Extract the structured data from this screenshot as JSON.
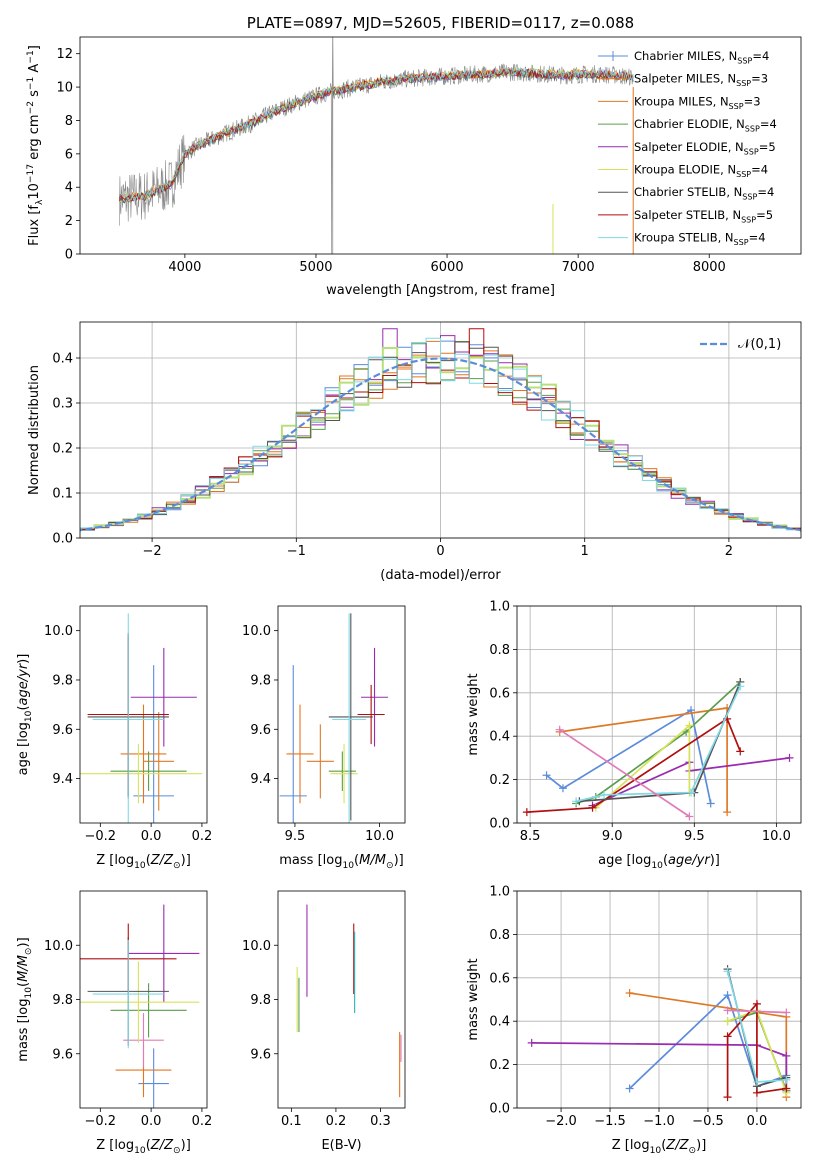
{
  "colors": [
    "#5b8cdc",
    "#e8731e",
    "#dd7a26",
    "#5a9e4c",
    "#9a2bb0",
    "#d6e35a",
    "#555555",
    "#b10f0f",
    "#7fd9e6"
  ],
  "extra_colors": {
    "pink": "#e07bb9",
    "lime": "#b8e07a",
    "teal": "#2bb3b0",
    "gray_data": "#888888",
    "gaussian": "#5b8cdc"
  },
  "chart_data": [
    {
      "id": "spectrum",
      "type": "line",
      "title": "PLATE=0897, MJD=52605, FIBERID=0117, z=0.088",
      "xlabel": "wavelength [Angstrom, rest frame]",
      "ylabel": "Flux [fλ10⁻¹⁷ erg cm⁻² s⁻¹ A⁻¹]",
      "xlim": [
        3200,
        8700
      ],
      "ylim": [
        0,
        13
      ],
      "xticks": [
        4000,
        5000,
        6000,
        7000,
        8000
      ],
      "yticks": [
        0,
        2,
        4,
        6,
        8,
        10,
        12
      ],
      "grid": false,
      "legend_position": "upper-right",
      "series": [
        {
          "name": "Chabrier MILES, N",
          "sub": "SSP",
          "post": "=4"
        },
        {
          "name": "Salpeter MILES, N",
          "sub": "SSP",
          "post": "=3"
        },
        {
          "name": "Kroupa MILES, N",
          "sub": "SSP",
          "post": "=3"
        },
        {
          "name": "Chabrier ELODIE, N",
          "sub": "SSP",
          "post": "=4"
        },
        {
          "name": "Salpeter ELODIE, N",
          "sub": "SSP",
          "post": "=5"
        },
        {
          "name": "Kroupa ELODIE, N",
          "sub": "SSP",
          "post": "=4"
        },
        {
          "name": "Chabrier STELIB, N",
          "sub": "SSP",
          "post": "=4"
        },
        {
          "name": "Salpeter STELIB, N",
          "sub": "SSP",
          "post": "=5"
        },
        {
          "name": "Kroupa STELIB, N",
          "sub": "SSP",
          "post": "=4"
        }
      ],
      "continuum": {
        "x": [
          3500,
          3700,
          3900,
          4000,
          4100,
          4300,
          4500,
          4700,
          4900,
          5100,
          5300,
          5500,
          5700,
          5900,
          6100,
          6300,
          6500,
          6700,
          6900,
          7100,
          7300,
          7400
        ],
        "y": [
          3.3,
          3.5,
          4.2,
          6.0,
          6.5,
          7.2,
          7.8,
          8.6,
          9.2,
          9.7,
          10.0,
          10.3,
          10.5,
          10.6,
          10.7,
          10.8,
          10.9,
          10.8,
          10.7,
          10.8,
          10.7,
          10.6
        ]
      }
    },
    {
      "id": "residuals",
      "type": "step",
      "xlabel": "(data-model)/error",
      "ylabel": "Normed distribution",
      "xlim": [
        -2.5,
        2.5
      ],
      "ylim": [
        0,
        0.48
      ],
      "xticks": [
        -2,
        -1,
        0,
        1,
        2
      ],
      "yticks": [
        0.0,
        0.1,
        0.2,
        0.3,
        0.4
      ],
      "grid": true,
      "legend": "𝒩(0,1)",
      "bin_width": 0.1
    },
    {
      "id": "age-vs-Z",
      "type": "errorbar",
      "xlabel": "Z [log10(Z/Z⊙)]",
      "ylabel": "age  [log10(age/yr)]",
      "xlim": [
        -0.28,
        0.22
      ],
      "ylim": [
        9.22,
        10.1
      ],
      "xticks": [
        -0.2,
        0.0,
        0.2
      ],
      "yticks": [
        9.4,
        9.6,
        9.8,
        10.0
      ],
      "points": [
        {
          "c": 0,
          "x": 0.01,
          "xe": 0.08,
          "y": 9.33,
          "ye": 0.53
        },
        {
          "c": 1,
          "x": -0.03,
          "xe": 0.09,
          "y": 9.5,
          "ye": 0.2
        },
        {
          "c": 2,
          "x": 0.03,
          "xe": 0.06,
          "y": 9.47,
          "ye": 0.2
        },
        {
          "c": 3,
          "x": -0.01,
          "xe": 0.15,
          "y": 9.43,
          "ye": 0.08
        },
        {
          "c": 4,
          "x": 0.05,
          "xe": 0.13,
          "y": 9.73,
          "ye": 0.2
        },
        {
          "c": 5,
          "x": -0.05,
          "xe": 0.25,
          "y": 9.42,
          "ye": 0.12
        },
        {
          "c": 6,
          "x": -0.09,
          "xe": 0.16,
          "y": 9.65,
          "ye": 0.33
        },
        {
          "c": 7,
          "x": -0.09,
          "xe": 0.16,
          "y": 9.66,
          "ye": 0.33
        },
        {
          "c": 8,
          "x": -0.09,
          "xe": 0.14,
          "y": 9.64,
          "ye": 0.43
        }
      ]
    },
    {
      "id": "age-vs-mass",
      "type": "errorbar",
      "xlabel": "mass [log10(M/M⊙)]",
      "ylabel": "",
      "xlim": [
        9.4,
        10.15
      ],
      "ylim": [
        9.22,
        10.1
      ],
      "xticks": [
        9.5,
        10.0
      ],
      "yticks": [
        9.4,
        9.6,
        9.8,
        10.0
      ],
      "points": [
        {
          "c": 0,
          "x": 9.49,
          "xe": 0.08,
          "y": 9.33,
          "ye": 0.53
        },
        {
          "c": 1,
          "x": 9.53,
          "xe": 0.08,
          "y": 9.5,
          "ye": 0.2
        },
        {
          "c": 2,
          "x": 9.65,
          "xe": 0.08,
          "y": 9.47,
          "ye": 0.15
        },
        {
          "c": 3,
          "x": 9.78,
          "xe": 0.08,
          "y": 9.43,
          "ye": 0.08
        },
        {
          "c": 4,
          "x": 9.97,
          "xe": 0.08,
          "y": 9.73,
          "ye": 0.2
        },
        {
          "c": 5,
          "x": 9.79,
          "xe": 0.08,
          "y": 9.42,
          "ye": 0.12
        },
        {
          "c": 6,
          "x": 9.83,
          "xe": 0.13,
          "y": 9.65,
          "ye": 0.42
        },
        {
          "c": 7,
          "x": 9.95,
          "xe": 0.08,
          "y": 9.66,
          "ye": 0.12
        },
        {
          "c": 8,
          "x": 9.82,
          "xe": 0.1,
          "y": 9.64,
          "ye": 0.43
        }
      ]
    },
    {
      "id": "weight-vs-age",
      "type": "line",
      "xlabel": "age  [log10(age/yr)]",
      "ylabel": "mass weight",
      "xlim": [
        8.42,
        10.15
      ],
      "ylim": [
        0,
        1
      ],
      "xticks": [
        8.5,
        9.0,
        9.5,
        10.0
      ],
      "yticks": [
        0.0,
        0.2,
        0.4,
        0.6,
        0.8,
        1.0
      ],
      "grid": true,
      "series": [
        {
          "c": 0,
          "x": [
            8.6,
            8.7,
            9.48,
            9.6
          ],
          "y": [
            0.22,
            0.16,
            0.52,
            0.09
          ]
        },
        {
          "c": 2,
          "x": [
            8.68,
            9.7,
            9.7
          ],
          "y": [
            0.42,
            0.53,
            0.05
          ]
        },
        {
          "c": 4,
          "x": [
            8.88,
            9.47,
            9.47,
            10.08
          ],
          "y": [
            0.08,
            0.28,
            0.24,
            0.3
          ]
        },
        {
          "c": 3,
          "x": [
            8.78,
            8.9,
            9.45,
            9.78
          ],
          "y": [
            0.09,
            0.12,
            0.42,
            0.65
          ]
        },
        {
          "c": 5,
          "x": [
            8.9,
            9.47,
            9.47
          ],
          "y": [
            0.07,
            0.45,
            0.14
          ]
        },
        {
          "c": 7,
          "x": [
            8.48,
            8.88,
            9.7,
            9.78
          ],
          "y": [
            0.05,
            0.07,
            0.48,
            0.33
          ]
        },
        {
          "c": 6,
          "x": [
            8.8,
            9.5,
            9.78
          ],
          "y": [
            0.1,
            0.14,
            0.65
          ]
        },
        {
          "c": 8,
          "x": [
            8.78,
            8.95,
            9.48,
            9.78
          ],
          "y": [
            0.1,
            0.13,
            0.14,
            0.63
          ]
        },
        {
          "c": "pink",
          "x": [
            8.68,
            9.47
          ],
          "y": [
            0.43,
            0.03
          ]
        }
      ]
    },
    {
      "id": "mass-vs-Z",
      "type": "errorbar",
      "xlabel": "Z [log10(Z/Z⊙)]",
      "ylabel": "mass [log10(M/M⊙)]",
      "xlim": [
        -0.28,
        0.22
      ],
      "ylim": [
        9.4,
        10.2
      ],
      "xticks": [
        -0.2,
        0.0,
        0.2
      ],
      "yticks": [
        9.6,
        9.8,
        10.0
      ],
      "points": [
        {
          "c": 0,
          "x": 0.01,
          "xe": 0.06,
          "y": 9.49,
          "ye": 0.13
        },
        {
          "c": 1,
          "x": -0.03,
          "xe": 0.11,
          "y": 9.54,
          "ye": 0.1
        },
        {
          "c": "pink",
          "x": -0.03,
          "xe": 0.08,
          "y": 9.65,
          "ye": 0.1
        },
        {
          "c": 3,
          "x": -0.01,
          "xe": 0.15,
          "y": 9.76,
          "ye": 0.1
        },
        {
          "c": 4,
          "x": 0.05,
          "xe": 0.14,
          "y": 9.97,
          "ye": 0.18
        },
        {
          "c": 5,
          "x": -0.05,
          "xe": 0.24,
          "y": 9.79,
          "ye": 0.15
        },
        {
          "c": 6,
          "x": -0.09,
          "xe": 0.16,
          "y": 9.83,
          "ye": 0.2
        },
        {
          "c": 7,
          "x": -0.09,
          "xe": 0.19,
          "y": 9.95,
          "ye": 0.13
        },
        {
          "c": 8,
          "x": -0.09,
          "xe": 0.14,
          "y": 9.82,
          "ye": 0.2
        }
      ]
    },
    {
      "id": "mass-vs-EBV",
      "type": "errorbar",
      "xlabel": "E(B-V)",
      "ylabel": "",
      "xlim": [
        0.07,
        0.355
      ],
      "ylim": [
        9.4,
        10.2
      ],
      "xticks": [
        0.1,
        0.2,
        0.3
      ],
      "yticks": [
        9.6,
        9.8,
        10.0
      ],
      "points": [
        {
          "c": 5,
          "x": 0.113,
          "xe": 0,
          "y": 9.8,
          "ye": 0.12
        },
        {
          "c": 3,
          "x": 0.117,
          "xe": 0,
          "y": 9.78,
          "ye": 0.1
        },
        {
          "c": 4,
          "x": 0.135,
          "xe": 0,
          "y": 9.98,
          "ye": 0.17
        },
        {
          "c": 7,
          "x": 0.24,
          "xe": 0,
          "y": 9.95,
          "ye": 0.13
        },
        {
          "c": "teal",
          "x": 0.242,
          "xe": 0,
          "y": 9.9,
          "ye": 0.15
        },
        {
          "c": 1,
          "x": 0.343,
          "xe": 0,
          "y": 9.56,
          "ye": 0.12
        },
        {
          "c": "pink",
          "x": 0.346,
          "xe": 0,
          "y": 9.62,
          "ye": 0.05
        }
      ]
    },
    {
      "id": "weight-vs-Z",
      "type": "line",
      "xlabel": "Z [log10(Z/Z⊙)]",
      "ylabel": "mass weight",
      "xlim": [
        -2.45,
        0.45
      ],
      "ylim": [
        0,
        1
      ],
      "xticks": [
        -2.0,
        -1.5,
        -1.0,
        -0.5,
        0.0
      ],
      "yticks": [
        0.0,
        0.2,
        0.4,
        0.6,
        0.8,
        1.0
      ],
      "grid": true,
      "series": [
        {
          "c": 0,
          "x": [
            -1.3,
            -0.3,
            0.0,
            0.3,
            0.3
          ],
          "y": [
            0.09,
            0.52,
            0.1,
            0.15,
            0.24
          ]
        },
        {
          "c": 2,
          "x": [
            -1.3,
            0.3,
            0.3
          ],
          "y": [
            0.53,
            0.42,
            0.05
          ]
        },
        {
          "c": 4,
          "x": [
            -2.3,
            0.0,
            0.3,
            0.3
          ],
          "y": [
            0.3,
            0.29,
            0.24,
            0.08
          ]
        },
        {
          "c": 3,
          "x": [
            -0.3,
            0.0,
            0.3
          ],
          "y": [
            0.4,
            0.44,
            0.08
          ]
        },
        {
          "c": 5,
          "x": [
            -0.3,
            0.0,
            0.3
          ],
          "y": [
            0.4,
            0.45,
            0.07
          ]
        },
        {
          "c": 7,
          "x": [
            -0.3,
            -0.3,
            0.0,
            0.0,
            0.3
          ],
          "y": [
            0.05,
            0.33,
            0.48,
            0.07,
            0.09
          ]
        },
        {
          "c": 6,
          "x": [
            -0.3,
            0.0,
            0.3
          ],
          "y": [
            0.64,
            0.1,
            0.14
          ]
        },
        {
          "c": 8,
          "x": [
            -0.3,
            0.0,
            0.3
          ],
          "y": [
            0.63,
            0.12,
            0.13
          ]
        },
        {
          "c": "pink",
          "x": [
            -0.3,
            0.3
          ],
          "y": [
            0.45,
            0.44
          ]
        }
      ]
    }
  ]
}
